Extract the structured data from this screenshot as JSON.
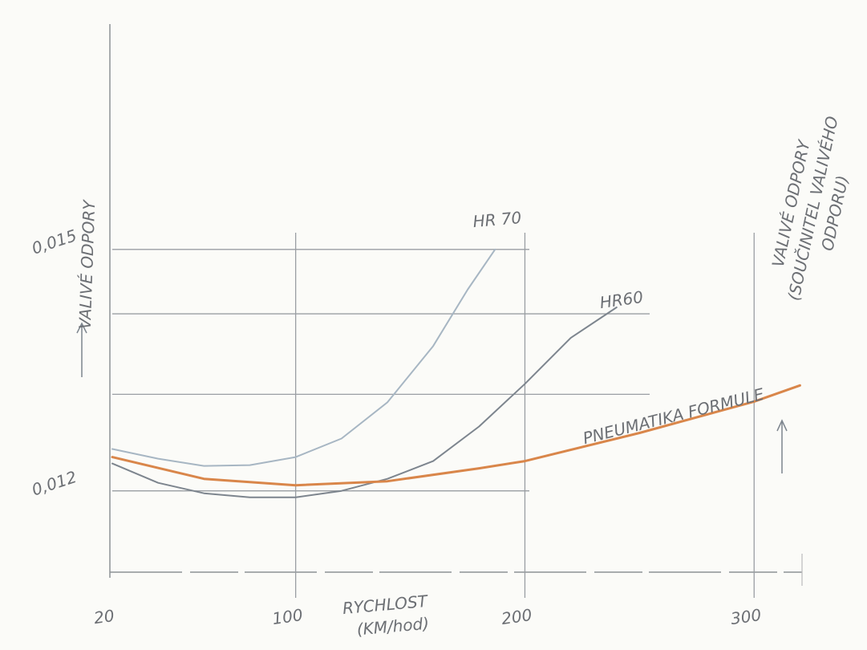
{
  "chart_data": {
    "type": "line",
    "ylabel": "VALIVÉ ODPORY",
    "y2label_lines": [
      "VALIVÉ ODPORY",
      "(SOUČINITEL VALIVÉHO",
      "ODPORU)"
    ],
    "xlabel_lines": [
      "RYCHLOST",
      "(KM/hod)"
    ],
    "xlim": [
      20,
      330
    ],
    "xticks": [
      20,
      100,
      200,
      300
    ],
    "ylim": [
      0.011,
      0.0177
    ],
    "yticks": [
      {
        "value": 0.012,
        "label": "0,012"
      },
      {
        "value": 0.015,
        "label": "0,015"
      }
    ],
    "grid_y": [
      0.0132,
      0.0142
    ],
    "grid": true,
    "series": [
      {
        "name": "HR 70",
        "color": "#a7b6c3",
        "x": [
          20,
          40,
          60,
          80,
          100,
          120,
          140,
          160,
          175,
          187
        ],
        "values": [
          0.01252,
          0.0124,
          0.01231,
          0.01232,
          0.01242,
          0.01265,
          0.0131,
          0.0138,
          0.0145,
          0.015
        ]
      },
      {
        "name": "HR60",
        "color": "#7d858e",
        "x": [
          20,
          40,
          60,
          80,
          100,
          120,
          140,
          160,
          180,
          200,
          220,
          240
        ],
        "values": [
          0.01234,
          0.0121,
          0.01197,
          0.01192,
          0.01192,
          0.012,
          0.01215,
          0.01237,
          0.0128,
          0.01333,
          0.0139,
          0.01428
        ]
      },
      {
        "name": "PNEUMATIKA FORMULE",
        "color": "#d9864a",
        "x": [
          20,
          60,
          100,
          140,
          180,
          200,
          250,
          300,
          320
        ],
        "values": [
          0.01242,
          0.01215,
          0.01207,
          0.01212,
          0.01228,
          0.01237,
          0.01272,
          0.01311,
          0.01331
        ]
      }
    ]
  }
}
